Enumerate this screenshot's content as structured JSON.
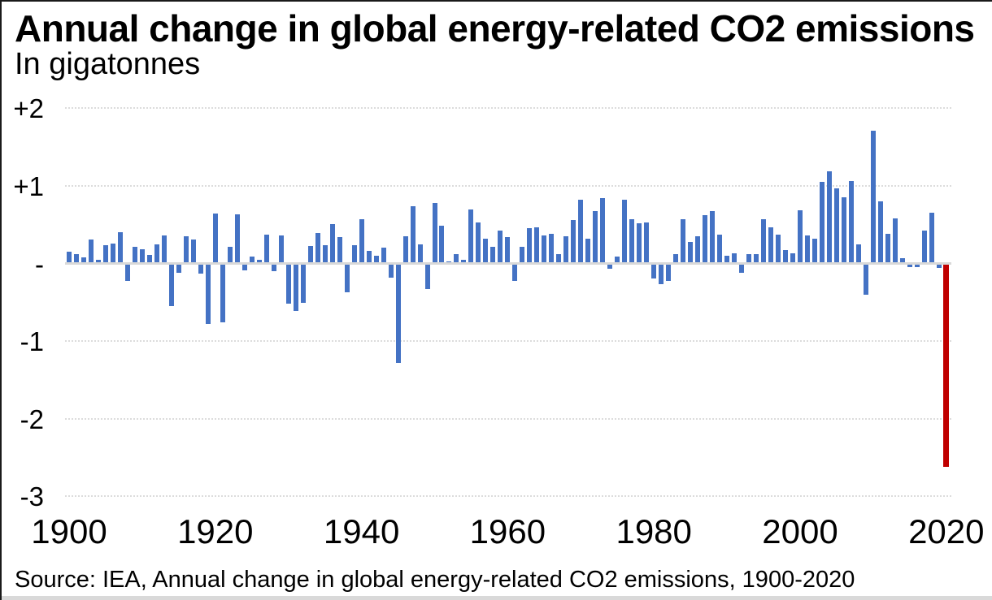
{
  "header": {
    "title": "Annual change in global energy-related CO2 emissions",
    "subtitle": "In gigatonnes"
  },
  "footer": {
    "source": "Source: IEA, Annual change in global energy-related CO2 emissions, 1900-2020"
  },
  "colors": {
    "bar_blue": "#4472c4",
    "bar_red": "#c00000",
    "gridline": "#dcdcdc",
    "zero_axis": "#d9d9d9"
  },
  "chart_data": {
    "type": "bar",
    "title": "Annual change in global energy-related CO2 emissions",
    "subtitle": "In gigatonnes",
    "ylabel": "Gigatonnes",
    "ylim": [
      -3,
      2
    ],
    "grid": "horizontal dotted",
    "legend": "none",
    "y_ticks": [
      {
        "label": "+2",
        "value": 2
      },
      {
        "label": "+1",
        "value": 1
      },
      {
        "label": "-",
        "value": 0
      },
      {
        "label": "-1",
        "value": -1
      },
      {
        "label": "-2",
        "value": -2
      },
      {
        "label": "-3",
        "value": -3
      }
    ],
    "x_ticks": [
      1900,
      1920,
      1940,
      1960,
      1980,
      2000,
      2020
    ],
    "x_start_year": 1900,
    "highlight_year": 2020,
    "values": [
      0.14,
      0.1,
      0.06,
      0.29,
      0.03,
      0.22,
      0.24,
      0.39,
      -0.21,
      0.2,
      0.17,
      0.09,
      0.23,
      0.34,
      -0.53,
      -0.1,
      0.33,
      0.29,
      -0.11,
      -0.76,
      0.63,
      -0.74,
      0.2,
      0.62,
      -0.07,
      0.07,
      0.03,
      0.36,
      -0.08,
      0.35,
      -0.5,
      -0.6,
      -0.49,
      0.21,
      0.38,
      0.22,
      0.49,
      0.32,
      -0.36,
      0.22,
      0.55,
      0.15,
      0.08,
      0.19,
      -0.17,
      -1.27,
      0.33,
      0.72,
      0.23,
      -0.31,
      0.76,
      0.47,
      0.01,
      0.1,
      0.03,
      0.68,
      0.51,
      0.3,
      0.2,
      0.41,
      0.32,
      -0.21,
      0.2,
      0.44,
      0.45,
      0.35,
      0.37,
      0.1,
      0.33,
      0.54,
      0.81,
      0.3,
      0.66,
      0.83,
      -0.05,
      0.07,
      0.81,
      0.55,
      0.5,
      0.51,
      -0.18,
      -0.25,
      -0.21,
      0.1,
      0.55,
      0.26,
      0.33,
      0.61,
      0.66,
      0.36,
      0.08,
      0.11,
      -0.1,
      0.1,
      0.1,
      0.55,
      0.45,
      0.36,
      0.16,
      0.12,
      0.67,
      0.34,
      0.3,
      1.04,
      1.17,
      0.95,
      0.84,
      1.05,
      0.23,
      -0.39,
      1.69,
      0.78,
      0.37,
      0.56,
      0.05,
      -0.03,
      -0.03,
      0.41,
      0.64,
      -0.04,
      -2.6
    ]
  }
}
